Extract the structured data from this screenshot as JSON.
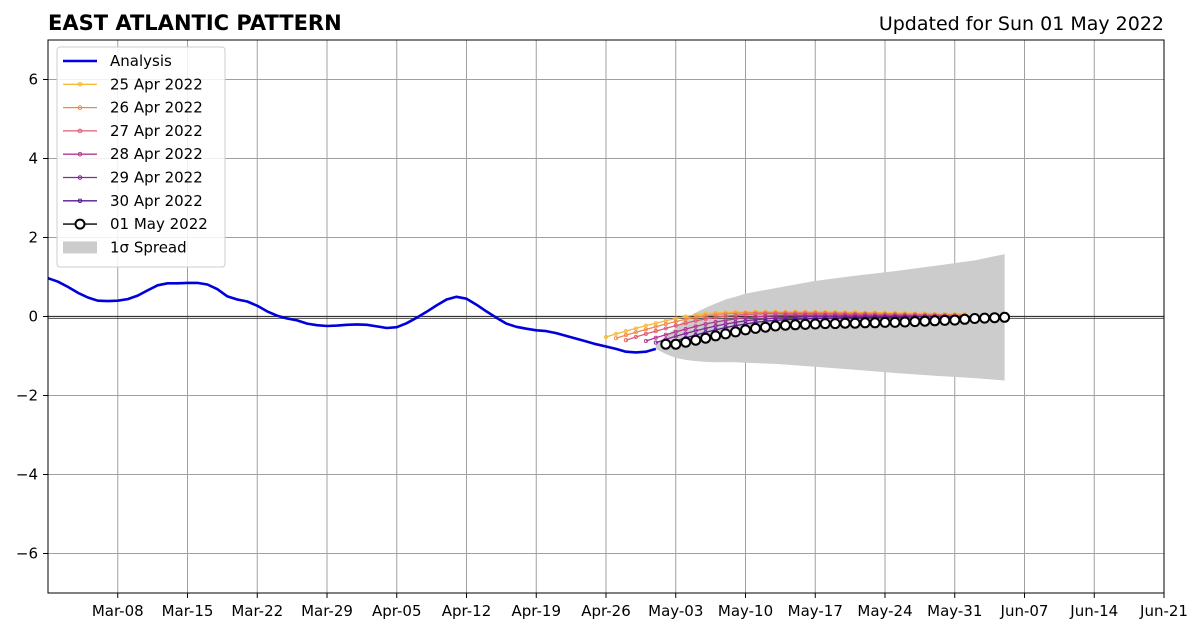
{
  "header": {
    "title": "EAST ATLANTIC PATTERN",
    "updated": "Updated for Sun 01 May 2022"
  },
  "chart_data": {
    "type": "line",
    "title": "EAST ATLANTIC PATTERN",
    "subtitle": "Updated for Sun 01 May 2022",
    "xlabel": "",
    "ylabel": "",
    "x_axis_type": "date",
    "xlim": [
      "2022-03-01",
      "2022-06-21"
    ],
    "ylim": [
      -7,
      7
    ],
    "x_ticks": [
      {
        "date": "2022-03-08",
        "label": "Mar-08"
      },
      {
        "date": "2022-03-15",
        "label": "Mar-15"
      },
      {
        "date": "2022-03-22",
        "label": "Mar-22"
      },
      {
        "date": "2022-03-29",
        "label": "Mar-29"
      },
      {
        "date": "2022-04-05",
        "label": "Apr-05"
      },
      {
        "date": "2022-04-12",
        "label": "Apr-12"
      },
      {
        "date": "2022-04-19",
        "label": "Apr-19"
      },
      {
        "date": "2022-04-26",
        "label": "Apr-26"
      },
      {
        "date": "2022-05-03",
        "label": "May-03"
      },
      {
        "date": "2022-05-10",
        "label": "May-10"
      },
      {
        "date": "2022-05-17",
        "label": "May-17"
      },
      {
        "date": "2022-05-24",
        "label": "May-24"
      },
      {
        "date": "2022-05-31",
        "label": "May-31"
      },
      {
        "date": "2022-06-07",
        "label": "Jun-07"
      },
      {
        "date": "2022-06-14",
        "label": "Jun-14"
      },
      {
        "date": "2022-06-21",
        "label": "Jun-21"
      }
    ],
    "y_ticks": [
      {
        "value": -6,
        "label": "−6"
      },
      {
        "value": -4,
        "label": "−4"
      },
      {
        "value": -2,
        "label": "−2"
      },
      {
        "value": 0,
        "label": "0"
      },
      {
        "value": 2,
        "label": "2"
      },
      {
        "value": 4,
        "label": "4"
      },
      {
        "value": 6,
        "label": "6"
      }
    ],
    "grid": true,
    "zero_line": true,
    "legend_position": "top-left",
    "analysis": {
      "name": "Analysis",
      "color": "#0000dd",
      "points": [
        [
          "2022-03-01",
          0.97
        ],
        [
          "2022-03-02",
          0.88
        ],
        [
          "2022-03-03",
          0.75
        ],
        [
          "2022-03-04",
          0.6
        ],
        [
          "2022-03-05",
          0.48
        ],
        [
          "2022-03-06",
          0.4
        ],
        [
          "2022-03-07",
          0.39
        ],
        [
          "2022-03-08",
          0.4
        ],
        [
          "2022-03-09",
          0.44
        ],
        [
          "2022-03-10",
          0.53
        ],
        [
          "2022-03-11",
          0.66
        ],
        [
          "2022-03-12",
          0.79
        ],
        [
          "2022-03-13",
          0.84
        ],
        [
          "2022-03-14",
          0.84
        ],
        [
          "2022-03-15",
          0.85
        ],
        [
          "2022-03-16",
          0.85
        ],
        [
          "2022-03-17",
          0.81
        ],
        [
          "2022-03-18",
          0.69
        ],
        [
          "2022-03-19",
          0.51
        ],
        [
          "2022-03-20",
          0.43
        ],
        [
          "2022-03-21",
          0.38
        ],
        [
          "2022-03-22",
          0.27
        ],
        [
          "2022-03-23",
          0.13
        ],
        [
          "2022-03-24",
          0.02
        ],
        [
          "2022-03-25",
          -0.05
        ],
        [
          "2022-03-26",
          -0.1
        ],
        [
          "2022-03-27",
          -0.18
        ],
        [
          "2022-03-28",
          -0.22
        ],
        [
          "2022-03-29",
          -0.24
        ],
        [
          "2022-03-30",
          -0.23
        ],
        [
          "2022-03-31",
          -0.21
        ],
        [
          "2022-04-01",
          -0.2
        ],
        [
          "2022-04-02",
          -0.21
        ],
        [
          "2022-04-03",
          -0.25
        ],
        [
          "2022-04-04",
          -0.29
        ],
        [
          "2022-04-05",
          -0.27
        ],
        [
          "2022-04-06",
          -0.17
        ],
        [
          "2022-04-07",
          -0.03
        ],
        [
          "2022-04-08",
          0.12
        ],
        [
          "2022-04-09",
          0.28
        ],
        [
          "2022-04-10",
          0.43
        ],
        [
          "2022-04-11",
          0.5
        ],
        [
          "2022-04-12",
          0.45
        ],
        [
          "2022-04-13",
          0.3
        ],
        [
          "2022-04-14",
          0.13
        ],
        [
          "2022-04-15",
          -0.03
        ],
        [
          "2022-04-16",
          -0.18
        ],
        [
          "2022-04-17",
          -0.26
        ],
        [
          "2022-04-18",
          -0.31
        ],
        [
          "2022-04-19",
          -0.35
        ],
        [
          "2022-04-20",
          -0.37
        ],
        [
          "2022-04-21",
          -0.42
        ],
        [
          "2022-04-22",
          -0.49
        ],
        [
          "2022-04-23",
          -0.56
        ],
        [
          "2022-04-24",
          -0.63
        ],
        [
          "2022-04-25",
          -0.7
        ],
        [
          "2022-04-26",
          -0.76
        ],
        [
          "2022-04-27",
          -0.82
        ],
        [
          "2022-04-28",
          -0.89
        ],
        [
          "2022-04-29",
          -0.91
        ],
        [
          "2022-04-30",
          -0.89
        ],
        [
          "2022-05-01",
          -0.82
        ]
      ]
    },
    "spread": {
      "name": "1σ Spread",
      "color": "#cccccc",
      "dates": [
        "2022-05-01",
        "2022-05-02",
        "2022-05-03",
        "2022-05-04",
        "2022-05-05",
        "2022-05-06",
        "2022-05-07",
        "2022-05-08",
        "2022-05-09",
        "2022-05-10",
        "2022-05-13",
        "2022-05-17",
        "2022-05-21",
        "2022-05-25",
        "2022-05-29",
        "2022-06-02",
        "2022-06-05"
      ],
      "upper": [
        -0.7,
        -0.5,
        -0.28,
        -0.05,
        0.1,
        0.22,
        0.33,
        0.43,
        0.5,
        0.58,
        0.72,
        0.9,
        1.03,
        1.15,
        1.28,
        1.42,
        1.58
      ],
      "lower": [
        -0.82,
        -0.95,
        -1.05,
        -1.1,
        -1.13,
        -1.15,
        -1.16,
        -1.16,
        -1.16,
        -1.17,
        -1.2,
        -1.27,
        -1.35,
        -1.43,
        -1.5,
        -1.56,
        -1.62
      ]
    },
    "forecasts": [
      {
        "name": "25 Apr 2022",
        "color": "#f5b93c",
        "start": "2022-04-26",
        "end": "2022-06-01",
        "values": [
          -0.52,
          -0.44,
          -0.37,
          -0.3,
          -0.23,
          -0.17,
          -0.11,
          -0.05,
          0.0,
          0.04,
          0.07,
          0.09,
          0.1,
          0.11,
          0.11,
          0.12,
          0.12,
          0.12,
          0.12,
          0.12,
          0.12,
          0.12,
          0.12,
          0.11,
          0.11,
          0.11,
          0.1,
          0.1,
          0.1,
          0.09,
          0.09,
          0.08,
          0.08,
          0.07,
          0.07,
          0.06,
          0.06
        ]
      },
      {
        "name": "26 Apr 2022",
        "color": "#f08a4b",
        "start": "2022-04-27",
        "end": "2022-06-01",
        "values": [
          -0.55,
          -0.47,
          -0.4,
          -0.33,
          -0.26,
          -0.19,
          -0.13,
          -0.07,
          -0.02,
          0.02,
          0.05,
          0.07,
          0.08,
          0.09,
          0.1,
          0.1,
          0.1,
          0.1,
          0.1,
          0.1,
          0.1,
          0.09,
          0.09,
          0.09,
          0.08,
          0.08,
          0.08,
          0.07,
          0.07,
          0.06,
          0.06,
          0.05,
          0.05,
          0.04,
          0.04,
          0.04
        ]
      },
      {
        "name": "27 Apr 2022",
        "color": "#dd5e72",
        "start": "2022-04-28",
        "end": "2022-06-01",
        "values": [
          -0.6,
          -0.52,
          -0.44,
          -0.37,
          -0.3,
          -0.23,
          -0.17,
          -0.11,
          -0.06,
          -0.02,
          0.01,
          0.03,
          0.05,
          0.06,
          0.07,
          0.07,
          0.07,
          0.07,
          0.07,
          0.07,
          0.07,
          0.07,
          0.06,
          0.06,
          0.06,
          0.05,
          0.05,
          0.05,
          0.04,
          0.04,
          0.04,
          0.03,
          0.03,
          0.03,
          0.02
        ]
      },
      {
        "name": "28 Apr 2022",
        "color": "#b5368e",
        "start": "2022-04-30",
        "end": "2022-06-01",
        "values": [
          -0.62,
          -0.54,
          -0.46,
          -0.39,
          -0.32,
          -0.25,
          -0.19,
          -0.14,
          -0.1,
          -0.06,
          -0.03,
          -0.01,
          0.01,
          0.02,
          0.03,
          0.03,
          0.03,
          0.03,
          0.03,
          0.03,
          0.03,
          0.03,
          0.03,
          0.02,
          0.02,
          0.02,
          0.02,
          0.01,
          0.01,
          0.01,
          0.01,
          0.0,
          0.0
        ]
      },
      {
        "name": "29 Apr 2022",
        "color": "#86259c",
        "start": "2022-05-01",
        "end": "2022-06-01",
        "values": [
          -0.66,
          -0.58,
          -0.5,
          -0.43,
          -0.36,
          -0.3,
          -0.24,
          -0.19,
          -0.15,
          -0.11,
          -0.08,
          -0.06,
          -0.04,
          -0.03,
          -0.02,
          -0.01,
          -0.01,
          0.0,
          0.0,
          0.0,
          0.0,
          0.0,
          0.0,
          0.0,
          0.0,
          0.0,
          0.0,
          0.0,
          0.0,
          0.0,
          0.0,
          0.0
        ]
      },
      {
        "name": "30 Apr 2022",
        "color": "#57178e",
        "start": "2022-05-02",
        "end": "2022-06-01",
        "values": [
          -0.7,
          -0.62,
          -0.54,
          -0.47,
          -0.4,
          -0.34,
          -0.28,
          -0.23,
          -0.19,
          -0.15,
          -0.12,
          -0.1,
          -0.08,
          -0.07,
          -0.06,
          -0.05,
          -0.04,
          -0.04,
          -0.03,
          -0.03,
          -0.03,
          -0.02,
          -0.02,
          -0.02,
          -0.02,
          -0.01,
          -0.01,
          -0.01,
          -0.01,
          -0.01,
          0.0
        ]
      },
      {
        "name": "01 May 2022",
        "color": "#000000",
        "marker": "open-circle",
        "start": "2022-05-02",
        "end": "2022-06-05",
        "values": [
          -0.7,
          -0.7,
          -0.65,
          -0.6,
          -0.55,
          -0.49,
          -0.44,
          -0.39,
          -0.34,
          -0.3,
          -0.27,
          -0.24,
          -0.22,
          -0.21,
          -0.2,
          -0.19,
          -0.18,
          -0.18,
          -0.17,
          -0.17,
          -0.16,
          -0.16,
          -0.15,
          -0.15,
          -0.14,
          -0.13,
          -0.12,
          -0.11,
          -0.1,
          -0.09,
          -0.07,
          -0.05,
          -0.04,
          -0.03,
          -0.02
        ]
      }
    ]
  }
}
